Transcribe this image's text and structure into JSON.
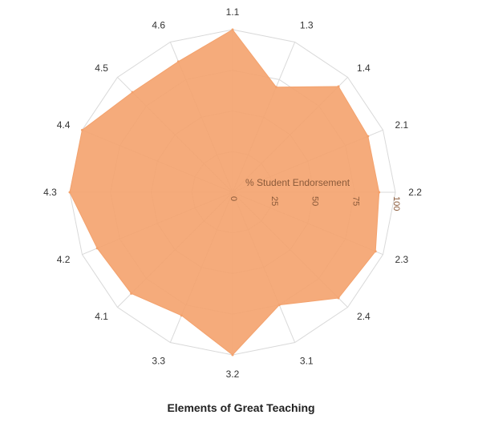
{
  "chart_data": {
    "type": "radar",
    "title": "Elements of Great Teaching",
    "categories": [
      "1.1",
      "1.3",
      "1.4",
      "2.1",
      "2.2",
      "2.3",
      "2.4",
      "3.1",
      "3.2",
      "3.3",
      "4.1",
      "4.2",
      "4.3",
      "4.4",
      "4.5",
      "4.6"
    ],
    "series": [
      {
        "values": [
          100,
          70,
          92,
          90,
          90,
          95,
          92,
          75,
          100,
          82,
          88,
          90,
          100,
          100,
          87,
          87
        ]
      }
    ],
    "radial_axis": {
      "title": "% Student Endorsement",
      "range": [
        0,
        100
      ],
      "ticks": [
        0,
        25,
        50,
        75,
        100
      ]
    },
    "grid": true,
    "colors": {
      "fill": "#f4a26d",
      "fill_opacity": 0.9,
      "grid": "#d9d9d9",
      "tick_text": "#8a5a3a"
    }
  }
}
